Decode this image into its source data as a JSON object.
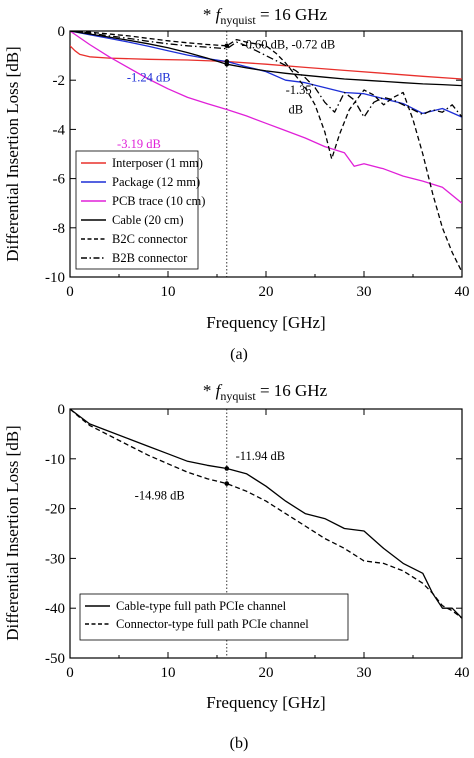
{
  "chart_data": [
    {
      "type": "line",
      "title": "* f_nyquist = 16 GHz",
      "title_prefix": "* ",
      "title_f": "f",
      "title_sub": "nyquist",
      "title_rest": " = 16 GHz",
      "caption": "(a)",
      "xlabel": "Frequency [GHz]",
      "ylabel": "Differential Insertion Loss [dB]",
      "xlim": [
        0,
        40
      ],
      "ylim": [
        -10,
        0
      ],
      "xticks": [
        0,
        10,
        20,
        30,
        40
      ],
      "yticks": [
        0,
        -2,
        -4,
        -6,
        -8,
        -10
      ],
      "grid": false,
      "legend_position": "lower-left",
      "marker_x": 16,
      "series": [
        {
          "name": "Interposer (1 mm)",
          "color": "#e8302c",
          "style": "solid",
          "x": [
            0,
            0.5,
            1,
            2,
            4,
            8,
            12,
            16,
            20,
            24,
            28,
            32,
            36,
            40
          ],
          "y": [
            -0.6,
            -0.8,
            -0.95,
            -1.05,
            -1.1,
            -1.15,
            -1.18,
            -1.24,
            -1.35,
            -1.48,
            -1.6,
            -1.72,
            -1.84,
            -1.95
          ]
        },
        {
          "name": "Package (12 mm)",
          "color": "#1d2fd6",
          "style": "solid",
          "x": [
            0,
            2,
            4,
            6,
            8,
            10,
            12,
            14,
            16,
            18,
            20,
            22,
            24,
            26,
            28,
            30,
            32,
            34,
            36,
            38,
            40
          ],
          "y": [
            0,
            -0.15,
            -0.3,
            -0.45,
            -0.62,
            -0.8,
            -0.98,
            -1.12,
            -1.24,
            -1.45,
            -1.65,
            -2.0,
            -2.1,
            -2.3,
            -2.5,
            -2.55,
            -2.75,
            -2.95,
            -3.35,
            -3.15,
            -3.5
          ]
        },
        {
          "name": "PCB trace (10 cm)",
          "color": "#e020d8",
          "style": "solid",
          "x": [
            0,
            2,
            4,
            6,
            8,
            10,
            12,
            14,
            16,
            18,
            20,
            22,
            24,
            26,
            28,
            29,
            30,
            32,
            34,
            36,
            38,
            40
          ],
          "y": [
            0,
            -0.55,
            -1.05,
            -1.5,
            -1.95,
            -2.35,
            -2.7,
            -2.95,
            -3.19,
            -3.45,
            -3.75,
            -4.05,
            -4.35,
            -4.7,
            -4.95,
            -5.5,
            -5.4,
            -5.6,
            -5.9,
            -6.1,
            -6.35,
            -7.0
          ]
        },
        {
          "name": "Cable (20 cm)",
          "color": "#000000",
          "style": "solid",
          "x": [
            0,
            2,
            4,
            6,
            8,
            10,
            12,
            14,
            16,
            18,
            20,
            22,
            24,
            26,
            28,
            30,
            32,
            34,
            36,
            38,
            40
          ],
          "y": [
            0,
            -0.12,
            -0.25,
            -0.38,
            -0.52,
            -0.68,
            -0.88,
            -1.1,
            -1.35,
            -1.5,
            -1.62,
            -1.72,
            -1.8,
            -1.88,
            -1.95,
            -2.0,
            -2.05,
            -2.1,
            -2.15,
            -2.18,
            -2.22
          ]
        },
        {
          "name": "B2C connector",
          "color": "#000000",
          "style": "dashed",
          "x": [
            0,
            2,
            4,
            6,
            8,
            10,
            12,
            14,
            16,
            17,
            18,
            20,
            21,
            22,
            23,
            24,
            25,
            26,
            26.7,
            27.5,
            28.5,
            30,
            31,
            32,
            33,
            34,
            35,
            36,
            37,
            38,
            39,
            40
          ],
          "y": [
            0,
            -0.05,
            -0.12,
            -0.2,
            -0.3,
            -0.4,
            -0.48,
            -0.55,
            -0.6,
            -0.35,
            -0.45,
            -0.6,
            -0.9,
            -1.3,
            -1.8,
            -2.3,
            -3.0,
            -4.1,
            -5.2,
            -4.2,
            -3.2,
            -2.4,
            -2.6,
            -3.0,
            -2.7,
            -2.5,
            -3.6,
            -5.0,
            -6.6,
            -8.0,
            -9.0,
            -9.8
          ]
        },
        {
          "name": "B2B connector",
          "color": "#000000",
          "style": "dashdot",
          "x": [
            0,
            2,
            4,
            6,
            8,
            10,
            12,
            14,
            16,
            17,
            18,
            19,
            20,
            21,
            22,
            23,
            24,
            25,
            26,
            27,
            28,
            29,
            30,
            31,
            32,
            33,
            34,
            35,
            36,
            37,
            38,
            39,
            40
          ],
          "y": [
            0,
            -0.08,
            -0.2,
            -0.3,
            -0.42,
            -0.52,
            -0.6,
            -0.66,
            -0.72,
            -0.45,
            -0.6,
            -0.8,
            -1.0,
            -1.2,
            -1.4,
            -1.6,
            -1.9,
            -2.3,
            -2.9,
            -3.3,
            -2.5,
            -2.8,
            -3.5,
            -2.9,
            -2.7,
            -2.8,
            -3.0,
            -3.2,
            -3.4,
            -3.2,
            -3.3,
            -3.0,
            -3.5
          ]
        }
      ],
      "annotations": [
        {
          "text": "-0.60 dB, -0.72 dB",
          "x": 17.5,
          "y": -0.55,
          "color": "#000000"
        },
        {
          "text": "-1.24 dB",
          "x": 5.8,
          "y": -1.9,
          "color": "#1d2fd6"
        },
        {
          "text": "-1.35",
          "x": 22,
          "y": -2.4,
          "color": "#000000"
        },
        {
          "text": "dB",
          "x": 22.3,
          "y": -3.2,
          "color": "#000000"
        },
        {
          "text": "-3.19 dB",
          "x": 4.8,
          "y": -4.6,
          "color": "#e020d8"
        }
      ],
      "marked_points": [
        {
          "x": 16,
          "y": -0.6
        },
        {
          "x": 16,
          "y": -1.24
        },
        {
          "x": 16,
          "y": -1.35
        }
      ]
    },
    {
      "type": "line",
      "title": "* f_nyquist = 16 GHz",
      "title_prefix": "* ",
      "title_f": "f",
      "title_sub": "nyquist",
      "title_rest": " = 16 GHz",
      "caption": "(b)",
      "xlabel": "Frequency [GHz]",
      "ylabel": "Differential Insertion Loss [dB]",
      "xlim": [
        0,
        40
      ],
      "ylim": [
        -50,
        0
      ],
      "xticks": [
        0,
        10,
        20,
        30,
        40
      ],
      "yticks": [
        0,
        -10,
        -20,
        -30,
        -40,
        -50
      ],
      "grid": false,
      "legend_position": "lower-left",
      "marker_x": 16,
      "series": [
        {
          "name": "Cable-type full path PCIe channel",
          "color": "#000000",
          "style": "solid",
          "x": [
            0,
            1,
            2,
            4,
            6,
            8,
            10,
            12,
            14,
            16,
            18,
            20,
            22,
            24,
            26,
            28,
            30,
            32,
            34,
            36,
            37,
            38,
            39,
            40
          ],
          "y": [
            0,
            -1.5,
            -3,
            -4.5,
            -6,
            -7.5,
            -9,
            -10.5,
            -11.3,
            -11.94,
            -13,
            -15.5,
            -18.5,
            -21,
            -22,
            -24,
            -24.5,
            -28,
            -31,
            -33,
            -37,
            -40,
            -40,
            -42
          ]
        },
        {
          "name": "Connector-type full path PCIe channel",
          "color": "#000000",
          "style": "dashed",
          "x": [
            0,
            1,
            2,
            4,
            6,
            8,
            10,
            12,
            14,
            16,
            18,
            20,
            22,
            24,
            26,
            28,
            30,
            32,
            34,
            36,
            37,
            38,
            39,
            40
          ],
          "y": [
            0,
            -1.7,
            -3.3,
            -5.3,
            -7.3,
            -9.3,
            -11,
            -12.7,
            -14,
            -14.98,
            -16.5,
            -18.5,
            -21,
            -23.5,
            -26,
            -28,
            -30.5,
            -31,
            -32.5,
            -35,
            -37,
            -39.5,
            -40.5,
            -42
          ]
        }
      ],
      "annotations": [
        {
          "text": "-11.94 dB",
          "x": 16.9,
          "y": -9.4,
          "color": "#000000"
        },
        {
          "text": "-14.98 dB",
          "x": 6.6,
          "y": -17.4,
          "color": "#000000"
        }
      ],
      "marked_points": [
        {
          "x": 16,
          "y": -11.94
        },
        {
          "x": 16,
          "y": -14.98
        }
      ]
    }
  ]
}
